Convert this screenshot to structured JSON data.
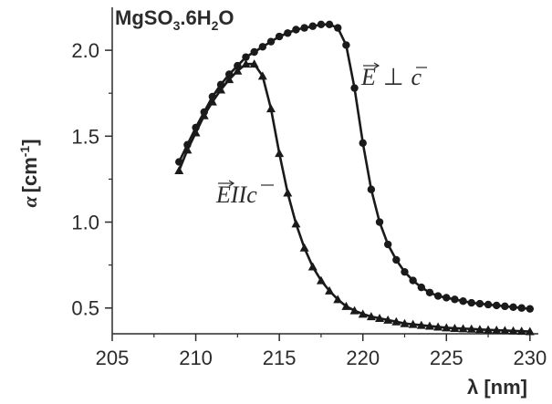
{
  "chart_data": {
    "type": "line",
    "title": "MgSO3.6H2O",
    "title_parts": {
      "base": "MgSO",
      "sub1": "3",
      "mid": ".6H",
      "sub2": "2",
      "end": "O"
    },
    "xlabel": "λ [nm]",
    "ylabel": "α [cm⁻¹]",
    "ylabel_parts": {
      "symbol": "α",
      "bracket_open": "[cm",
      "sup": "-1",
      "bracket_close": "]"
    },
    "xlim": [
      205,
      230.5
    ],
    "ylim": [
      0.35,
      2.25
    ],
    "xticks": [
      205,
      210,
      215,
      220,
      225,
      230
    ],
    "xtick_labels": [
      "205",
      "210",
      "215",
      "220",
      "225",
      "230"
    ],
    "yticks": [
      0.5,
      1.0,
      1.5,
      2.0
    ],
    "ytick_labels": [
      "0.5",
      "1.0",
      "1.5",
      "2.0"
    ],
    "grid": false,
    "series": [
      {
        "name": "E ⊥ c",
        "label_parts": {
          "e": "E",
          "op": "⊥",
          "c": "c"
        },
        "marker": "circle",
        "color": "#1a1a1a",
        "x": [
          209.0,
          209.5,
          210.0,
          210.5,
          211.0,
          211.5,
          212.0,
          212.5,
          213.0,
          213.5,
          214.0,
          214.5,
          215.0,
          215.5,
          216.0,
          216.5,
          217.0,
          217.5,
          218.0,
          218.5,
          219.0,
          219.5,
          220.0,
          220.5,
          221.0,
          221.5,
          222.0,
          222.5,
          223.0,
          223.5,
          224.0,
          224.5,
          225.0,
          225.5,
          226.0,
          226.5,
          227.0,
          227.5,
          228.0,
          228.5,
          229.0,
          229.5,
          230.0
        ],
        "y": [
          1.35,
          1.45,
          1.55,
          1.64,
          1.73,
          1.8,
          1.86,
          1.91,
          1.96,
          1.99,
          2.02,
          2.05,
          2.08,
          2.1,
          2.12,
          2.13,
          2.14,
          2.15,
          2.15,
          2.13,
          2.03,
          1.78,
          1.46,
          1.19,
          1.0,
          0.87,
          0.78,
          0.71,
          0.66,
          0.62,
          0.59,
          0.57,
          0.56,
          0.55,
          0.54,
          0.53,
          0.525,
          0.52,
          0.515,
          0.51,
          0.505,
          0.5,
          0.495
        ]
      },
      {
        "name": "E II c",
        "label_parts": {
          "e": "E",
          "op": "II",
          "c": "c"
        },
        "marker": "triangle",
        "color": "#1a1a1a",
        "x": [
          209.0,
          209.5,
          210.0,
          210.5,
          211.0,
          211.5,
          212.0,
          212.5,
          213.0,
          213.5,
          214.0,
          214.5,
          215.0,
          215.5,
          216.0,
          216.5,
          217.0,
          217.5,
          218.0,
          218.5,
          219.0,
          219.5,
          220.0,
          220.5,
          221.0,
          221.5,
          222.0,
          222.5,
          223.0,
          223.5,
          224.0,
          224.5,
          225.0,
          225.5,
          226.0,
          226.5,
          227.0,
          227.5,
          228.0,
          228.5,
          229.0,
          229.5,
          230.0
        ],
        "y": [
          1.3,
          1.42,
          1.52,
          1.62,
          1.7,
          1.77,
          1.83,
          1.88,
          1.92,
          1.92,
          1.85,
          1.66,
          1.4,
          1.17,
          0.99,
          0.85,
          0.74,
          0.66,
          0.6,
          0.55,
          0.51,
          0.485,
          0.465,
          0.45,
          0.44,
          0.43,
          0.42,
          0.41,
          0.405,
          0.4,
          0.395,
          0.39,
          0.385,
          0.382,
          0.38,
          0.378,
          0.375,
          0.373,
          0.371,
          0.369,
          0.367,
          0.365,
          0.363
        ]
      }
    ]
  }
}
